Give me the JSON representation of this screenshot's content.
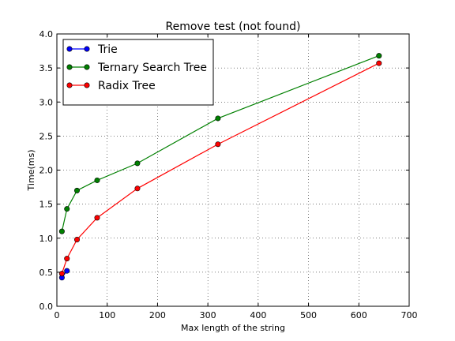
{
  "chart_data": {
    "type": "line",
    "title": "Remove test (not found)",
    "xlabel": "Max length of the string",
    "ylabel": "Time(ms)",
    "xlim": [
      0,
      700
    ],
    "ylim": [
      0,
      4.0
    ],
    "xticks": [
      0,
      100,
      200,
      300,
      400,
      500,
      600,
      700
    ],
    "xtick_labels": [
      "0",
      "100",
      "200",
      "300",
      "400",
      "500",
      "600",
      "700"
    ],
    "yticks": [
      0,
      0.5,
      1.0,
      1.5,
      2.0,
      2.5,
      3.0,
      3.5,
      4.0
    ],
    "ytick_labels": [
      "0.0",
      "0.5",
      "1.0",
      "1.5",
      "2.0",
      "2.5",
      "3.0",
      "3.5",
      "4.0"
    ],
    "grid": true,
    "legend_position": "top-left",
    "series": [
      {
        "name": "Trie",
        "color": "#0000ff",
        "x": [
          10,
          20
        ],
        "y": [
          0.42,
          0.52
        ]
      },
      {
        "name": "Ternary Search Tree",
        "color": "#008000",
        "x": [
          10,
          20,
          40,
          80,
          160,
          320,
          640
        ],
        "y": [
          1.1,
          1.43,
          1.7,
          1.85,
          2.1,
          2.76,
          3.68
        ]
      },
      {
        "name": "Radix Tree",
        "color": "#ff0000",
        "x": [
          10,
          20,
          40,
          80,
          160,
          320,
          640
        ],
        "y": [
          0.48,
          0.7,
          0.98,
          1.3,
          1.73,
          2.38,
          3.57
        ]
      }
    ]
  }
}
